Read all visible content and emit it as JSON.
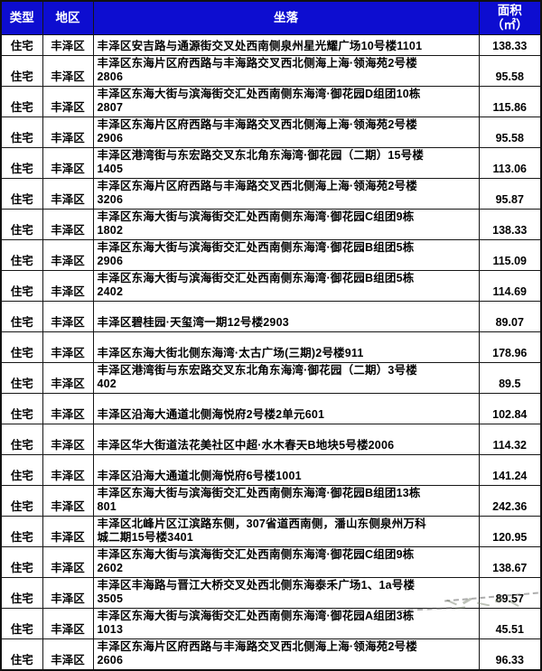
{
  "colors": {
    "header_bg": "#0d0dd0",
    "header_text": "#ffffff",
    "body_text": "#000000",
    "grid_line": "#161616",
    "watermark_stroke": "#6e7a64"
  },
  "table": {
    "headers": {
      "type": "类型",
      "district": "地区",
      "location": "坐落",
      "area_line1": "面积",
      "area_line2": "（㎡）"
    },
    "rows": [
      {
        "type": "住宅",
        "district": "丰泽区",
        "location": "丰泽区安吉路与通源街交叉处西南侧泉州星光耀广场10号楼1101",
        "area": "138.33"
      },
      {
        "type": "住宅",
        "district": "丰泽区",
        "location": "丰泽区东海片区府西路与丰海路交叉西北侧海上海·领海苑2号楼\n2806",
        "area": "95.58"
      },
      {
        "type": "住宅",
        "district": "丰泽区",
        "location": "丰泽区东海大街与滨海街交汇处西南侧东海湾·御花园D组团10栋\n2807",
        "area": "115.86"
      },
      {
        "type": "住宅",
        "district": "丰泽区",
        "location": "丰泽区东海片区府西路与丰海路交叉西北侧海上海·领海苑2号楼\n2906",
        "area": "95.58"
      },
      {
        "type": "住宅",
        "district": "丰泽区",
        "location": "丰泽区港湾街与东宏路交叉东北角东海湾·御花园（二期）15号楼\n1405",
        "area": "113.06"
      },
      {
        "type": "住宅",
        "district": "丰泽区",
        "location": "丰泽区东海片区府西路与丰海路交叉西北侧海上海·领海苑2号楼\n3206",
        "area": "95.87"
      },
      {
        "type": "住宅",
        "district": "丰泽区",
        "location": "丰泽区东海大街与滨海街交汇处西南侧东海湾·御花园C组团9栋\n1802",
        "area": "138.33"
      },
      {
        "type": "住宅",
        "district": "丰泽区",
        "location": "丰泽区东海大街与滨海街交汇处西南侧东海湾·御花园B组团5栋\n2906",
        "area": "115.09"
      },
      {
        "type": "住宅",
        "district": "丰泽区",
        "location": "丰泽区东海大街与滨海街交汇处西南侧东海湾·御花园B组团5栋\n2402",
        "area": "114.69"
      },
      {
        "type": "住宅",
        "district": "丰泽区",
        "location": "丰泽区碧桂园·天玺湾一期12号楼2903",
        "area": "89.07"
      },
      {
        "type": "住宅",
        "district": "丰泽区",
        "location": "丰泽区东海大街北侧东海湾·太古广场(三期)2号楼911",
        "area": "178.96"
      },
      {
        "type": "住宅",
        "district": "丰泽区",
        "location": "丰泽区港湾街与东宏路交叉东北角东海湾·御花园（二期）3号楼\n402",
        "area": "89.5"
      },
      {
        "type": "住宅",
        "district": "丰泽区",
        "location": "丰泽区沿海大通道北侧海悦府2号楼2单元601",
        "area": "102.84"
      },
      {
        "type": "住宅",
        "district": "丰泽区",
        "location": "丰泽区华大街道法花美社区中超·水木春天B地块5号楼2006",
        "area": "114.32"
      },
      {
        "type": "住宅",
        "district": "丰泽区",
        "location": "丰泽区沿海大通道北侧海悦府6号楼1001",
        "area": "141.24"
      },
      {
        "type": "住宅",
        "district": "丰泽区",
        "location": "丰泽区东海大街与滨海街交汇处西南侧东海湾·御花园B组团13栋\n801",
        "area": "242.36"
      },
      {
        "type": "住宅",
        "district": "丰泽区",
        "location": "丰泽区北峰片区江滨路东侧，307省道西南侧，潘山东侧泉州万科\n城二期15号楼3401",
        "area": "120.95"
      },
      {
        "type": "住宅",
        "district": "丰泽区",
        "location": "丰泽区东海大街与滨海街交汇处西南侧东海湾·御花园C组团9栋\n2602",
        "area": "138.67"
      },
      {
        "type": "住宅",
        "district": "丰泽区",
        "location": "丰泽区丰海路与晋江大桥交叉处西北侧东海泰禾广场1、1a号楼\n3505",
        "area": "89.57"
      },
      {
        "type": "住宅",
        "district": "丰泽区",
        "location": "丰泽区东海大街与滨海街交汇处西南侧东海湾·御花园A组团3栋\n1013",
        "area": "45.51"
      },
      {
        "type": "住宅",
        "district": "丰泽区",
        "location": "丰泽区东海片区府西路与丰海路交叉西北侧海上海·领海苑2号楼\n2606",
        "area": "96.33"
      }
    ]
  }
}
